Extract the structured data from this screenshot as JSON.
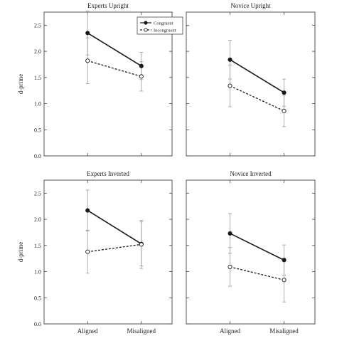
{
  "chart_data": [
    {
      "type": "line",
      "title": "Experts Upright",
      "xlabel": "",
      "ylabel": "d-prime",
      "categories": [
        "Aligned",
        "Misaligned"
      ],
      "ylim": [
        0,
        2.75
      ],
      "yticks": [
        "0.0",
        "0.5",
        "1.0",
        "1.5",
        "2.0",
        "2.5"
      ],
      "show_x_tick_labels": false,
      "legend": {
        "position": "top-right",
        "entries": [
          "Congruent",
          "Incongruent"
        ]
      },
      "series": [
        {
          "name": "Congruent",
          "style": "solid",
          "marker": "filled-circle",
          "values": [
            2.35,
            1.72
          ],
          "error": [
            0.42,
            0.26
          ]
        },
        {
          "name": "Incongruent",
          "style": "dashed",
          "marker": "open-circle",
          "values": [
            1.82,
            1.52
          ],
          "error": [
            0.44,
            0.28
          ]
        }
      ]
    },
    {
      "type": "line",
      "title": "Novice Upright",
      "xlabel": "",
      "ylabel": "",
      "categories": [
        "Aligned",
        "Misaligned"
      ],
      "ylim": [
        0,
        2.75
      ],
      "show_x_tick_labels": false,
      "series": [
        {
          "name": "Congruent",
          "style": "solid",
          "marker": "filled-circle",
          "values": [
            1.84,
            1.21
          ],
          "error": [
            0.37,
            0.26
          ]
        },
        {
          "name": "Incongruent",
          "style": "dashed",
          "marker": "open-circle",
          "values": [
            1.34,
            0.86
          ],
          "error": [
            0.4,
            0.3
          ]
        }
      ]
    },
    {
      "type": "line",
      "title": "Experts Inverted",
      "xlabel": "",
      "ylabel": "d-prime",
      "categories": [
        "Aligned",
        "Misaligned"
      ],
      "ylim": [
        0,
        2.75
      ],
      "yticks": [
        "0.0",
        "0.5",
        "1.0",
        "1.5",
        "2.0",
        "2.5"
      ],
      "show_x_tick_labels": true,
      "series": [
        {
          "name": "Congruent",
          "style": "solid",
          "marker": "filled-circle",
          "values": [
            2.17,
            1.53
          ],
          "error": [
            0.39,
            0.42
          ]
        },
        {
          "name": "Incongruent",
          "style": "dashed",
          "marker": "open-circle",
          "values": [
            1.38,
            1.52
          ],
          "error": [
            0.41,
            0.46
          ]
        }
      ]
    },
    {
      "type": "line",
      "title": "Novice Inverted",
      "xlabel": "",
      "ylabel": "",
      "categories": [
        "Aligned",
        "Misaligned"
      ],
      "ylim": [
        0,
        2.75
      ],
      "show_x_tick_labels": true,
      "series": [
        {
          "name": "Congruent",
          "style": "solid",
          "marker": "filled-circle",
          "values": [
            1.73,
            1.22
          ],
          "error": [
            0.38,
            0.29
          ]
        },
        {
          "name": "Incongruent",
          "style": "dashed",
          "marker": "open-circle",
          "values": [
            1.09,
            0.84
          ],
          "error": [
            0.37,
            0.42
          ]
        }
      ]
    }
  ],
  "colors": {
    "line": "#1a1a1a",
    "axis": "#444444",
    "error_bar": "#999999",
    "marker_open_fill": "#ffffff"
  }
}
